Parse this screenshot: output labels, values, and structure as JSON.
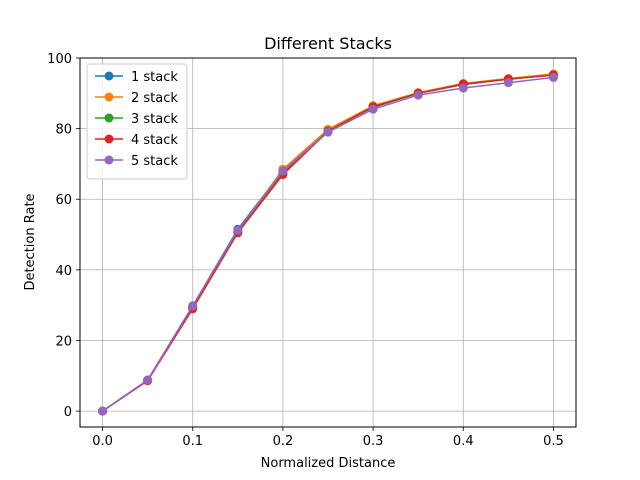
{
  "chart_data": {
    "type": "line",
    "title": "Different Stacks",
    "xlabel": "Normalized Distance",
    "ylabel": "Detection Rate",
    "xlim": [
      -0.025,
      0.525
    ],
    "ylim": [
      -4.5,
      100
    ],
    "xticks": [
      0.0,
      0.1,
      0.2,
      0.3,
      0.4,
      0.5
    ],
    "xtick_labels": [
      "0.0",
      "0.1",
      "0.2",
      "0.3",
      "0.4",
      "0.5"
    ],
    "yticks": [
      0,
      20,
      40,
      60,
      80,
      100
    ],
    "ytick_labels": [
      "0",
      "20",
      "40",
      "60",
      "80",
      "100"
    ],
    "grid": true,
    "legend_position": "top-left",
    "x": [
      0.0,
      0.05,
      0.1,
      0.15,
      0.2,
      0.25,
      0.3,
      0.35,
      0.4,
      0.45,
      0.5
    ],
    "series": [
      {
        "name": "1 stack",
        "color": "#1f77b4",
        "values": [
          0,
          8.8,
          29.8,
          51.5,
          68.2,
          79.5,
          86.0,
          90.0,
          92.5,
          94.0,
          95.2
        ]
      },
      {
        "name": "2 stack",
        "color": "#ff7f0e",
        "values": [
          0,
          8.7,
          29.5,
          51.0,
          68.5,
          79.8,
          86.5,
          90.2,
          92.8,
          94.2,
          95.5
        ]
      },
      {
        "name": "3 stack",
        "color": "#2ca02c",
        "values": [
          0,
          8.7,
          29.3,
          50.8,
          67.5,
          79.3,
          86.2,
          90.0,
          92.5,
          94.0,
          95.2
        ]
      },
      {
        "name": "4 stack",
        "color": "#d62728",
        "values": [
          0,
          8.6,
          29.0,
          50.5,
          67.0,
          79.2,
          86.2,
          90.0,
          92.6,
          94.0,
          95.2
        ]
      },
      {
        "name": "5 stack",
        "color": "#9467bd",
        "values": [
          0,
          8.8,
          29.8,
          51.2,
          68.0,
          79.0,
          85.5,
          89.5,
          91.5,
          93.0,
          94.5
        ]
      }
    ]
  }
}
